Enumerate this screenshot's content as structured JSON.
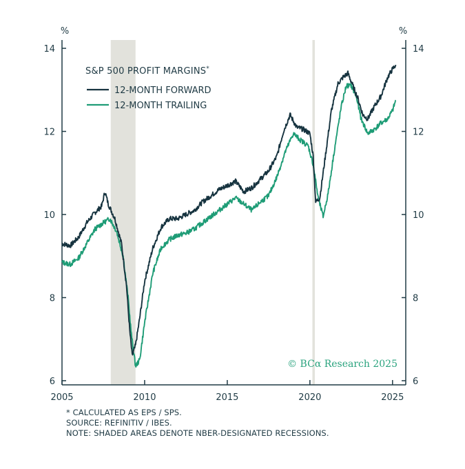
{
  "chart_data": {
    "type": "line",
    "title": "S&P 500 PROFIT MARGINS",
    "title_marker": "*",
    "y_unit_left": "%",
    "y_unit_right": "%",
    "xlim": [
      2005,
      2025.8
    ],
    "ylim": [
      5.9,
      14.2
    ],
    "x_ticks": [
      2005,
      2010,
      2015,
      2020,
      2025
    ],
    "x_tick_labels": [
      "2005",
      "2010",
      "2015",
      "2020",
      "2025"
    ],
    "y_ticks": [
      6,
      8,
      10,
      12,
      14
    ],
    "y_tick_labels": [
      "6",
      "8",
      "10",
      "12",
      "14"
    ],
    "grid": false,
    "legend_position": "top-left",
    "recessions": [
      {
        "start": 2007.95,
        "end": 2009.45
      },
      {
        "start": 2020.15,
        "end": 2020.3
      }
    ],
    "series": [
      {
        "name": "12-MONTH FORWARD",
        "color": "#16333f",
        "points": [
          [
            2005.0,
            9.3
          ],
          [
            2005.5,
            9.25
          ],
          [
            2006.0,
            9.45
          ],
          [
            2006.5,
            9.8
          ],
          [
            2007.0,
            10.05
          ],
          [
            2007.4,
            10.2
          ],
          [
            2007.6,
            10.55
          ],
          [
            2007.8,
            10.25
          ],
          [
            2008.2,
            9.9
          ],
          [
            2008.6,
            9.3
          ],
          [
            2008.9,
            8.3
          ],
          [
            2009.1,
            7.2
          ],
          [
            2009.25,
            6.6
          ],
          [
            2009.45,
            6.85
          ],
          [
            2009.7,
            7.5
          ],
          [
            2010.0,
            8.4
          ],
          [
            2010.5,
            9.2
          ],
          [
            2011.0,
            9.7
          ],
          [
            2011.5,
            9.9
          ],
          [
            2012.0,
            9.9
          ],
          [
            2012.5,
            10.0
          ],
          [
            2013.0,
            10.1
          ],
          [
            2013.5,
            10.3
          ],
          [
            2014.0,
            10.45
          ],
          [
            2014.5,
            10.6
          ],
          [
            2015.0,
            10.7
          ],
          [
            2015.5,
            10.8
          ],
          [
            2016.0,
            10.55
          ],
          [
            2016.5,
            10.65
          ],
          [
            2017.0,
            10.85
          ],
          [
            2017.5,
            11.05
          ],
          [
            2018.0,
            11.4
          ],
          [
            2018.4,
            12.0
          ],
          [
            2018.8,
            12.4
          ],
          [
            2019.2,
            12.1
          ],
          [
            2019.6,
            12.05
          ],
          [
            2020.0,
            11.95
          ],
          [
            2020.2,
            11.4
          ],
          [
            2020.35,
            10.3
          ],
          [
            2020.6,
            10.4
          ],
          [
            2020.9,
            11.3
          ],
          [
            2021.3,
            12.5
          ],
          [
            2021.7,
            13.15
          ],
          [
            2022.0,
            13.3
          ],
          [
            2022.3,
            13.4
          ],
          [
            2022.6,
            13.1
          ],
          [
            2022.9,
            12.8
          ],
          [
            2023.2,
            12.4
          ],
          [
            2023.5,
            12.3
          ],
          [
            2023.9,
            12.6
          ],
          [
            2024.3,
            12.85
          ],
          [
            2024.7,
            13.3
          ],
          [
            2025.0,
            13.5
          ],
          [
            2025.2,
            13.6
          ]
        ]
      },
      {
        "name": "12-MONTH TRAILING",
        "color": "#1e9c76",
        "points": [
          [
            2005.0,
            8.85
          ],
          [
            2005.5,
            8.8
          ],
          [
            2006.0,
            8.95
          ],
          [
            2006.5,
            9.3
          ],
          [
            2007.0,
            9.65
          ],
          [
            2007.5,
            9.8
          ],
          [
            2007.9,
            9.9
          ],
          [
            2008.3,
            9.6
          ],
          [
            2008.7,
            9.0
          ],
          [
            2009.0,
            8.0
          ],
          [
            2009.2,
            7.1
          ],
          [
            2009.45,
            6.35
          ],
          [
            2009.7,
            6.5
          ],
          [
            2010.0,
            7.4
          ],
          [
            2010.5,
            8.6
          ],
          [
            2011.0,
            9.2
          ],
          [
            2011.5,
            9.4
          ],
          [
            2012.0,
            9.5
          ],
          [
            2012.5,
            9.55
          ],
          [
            2013.0,
            9.65
          ],
          [
            2013.5,
            9.8
          ],
          [
            2014.0,
            9.95
          ],
          [
            2014.5,
            10.1
          ],
          [
            2015.0,
            10.25
          ],
          [
            2015.5,
            10.4
          ],
          [
            2016.0,
            10.25
          ],
          [
            2016.5,
            10.1
          ],
          [
            2017.0,
            10.3
          ],
          [
            2017.5,
            10.45
          ],
          [
            2018.0,
            10.9
          ],
          [
            2018.5,
            11.5
          ],
          [
            2019.0,
            11.95
          ],
          [
            2019.4,
            11.8
          ],
          [
            2019.9,
            11.65
          ],
          [
            2020.2,
            11.2
          ],
          [
            2020.5,
            10.4
          ],
          [
            2020.8,
            9.95
          ],
          [
            2021.1,
            10.5
          ],
          [
            2021.5,
            11.6
          ],
          [
            2021.9,
            12.6
          ],
          [
            2022.2,
            13.1
          ],
          [
            2022.5,
            13.1
          ],
          [
            2022.8,
            12.85
          ],
          [
            2023.1,
            12.3
          ],
          [
            2023.5,
            11.95
          ],
          [
            2023.9,
            12.05
          ],
          [
            2024.3,
            12.2
          ],
          [
            2024.7,
            12.3
          ],
          [
            2025.0,
            12.5
          ],
          [
            2025.2,
            12.75
          ]
        ]
      }
    ]
  },
  "watermark": "© BCα Research 2025",
  "footnotes": [
    "* CALCULATED AS EPS / SPS.",
    "SOURCE: REFINITIV / IBES.",
    "NOTE: SHADED AREAS DENOTE NBER-DESIGNATED RECESSIONS."
  ]
}
